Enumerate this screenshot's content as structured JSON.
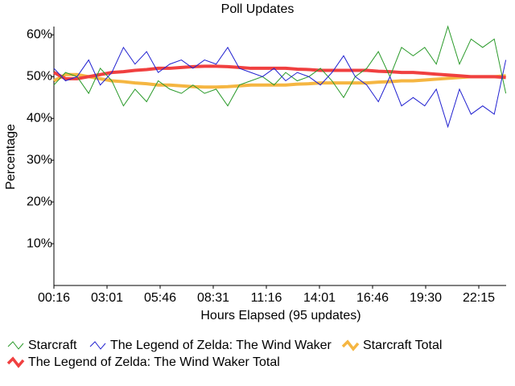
{
  "chart_data": {
    "type": "line",
    "title": "Poll Updates",
    "xlabel": "Hours Elapsed (95 updates)",
    "ylabel": "Percentage",
    "x": [
      16,
      52,
      88,
      124,
      160,
      196,
      232,
      268,
      304,
      340,
      376,
      412,
      448,
      484,
      520,
      556,
      592,
      628,
      664,
      700,
      736,
      772,
      808,
      844,
      880,
      916,
      952,
      988,
      1024,
      1060,
      1096,
      1132,
      1168,
      1204,
      1240,
      1276,
      1312,
      1348,
      1384,
      1420
    ],
    "xlim": [
      16,
      1421
    ],
    "xticks": [
      {
        "value": 16,
        "label": "00:16"
      },
      {
        "value": 181,
        "label": "03:01"
      },
      {
        "value": 346,
        "label": "05:46"
      },
      {
        "value": 511,
        "label": "08:31"
      },
      {
        "value": 676,
        "label": "11:16"
      },
      {
        "value": 841,
        "label": "14:01"
      },
      {
        "value": 1006,
        "label": "16:46"
      },
      {
        "value": 1171,
        "label": "19:30"
      },
      {
        "value": 1336,
        "label": "22:15"
      }
    ],
    "ylim": [
      0,
      62
    ],
    "yticks": [
      {
        "value": 10,
        "label": "10%"
      },
      {
        "value": 20,
        "label": "20%"
      },
      {
        "value": 30,
        "label": "30%"
      },
      {
        "value": 40,
        "label": "40%"
      },
      {
        "value": 50,
        "label": "50%"
      },
      {
        "value": 60,
        "label": "60%"
      }
    ],
    "grid": false,
    "legend": "bottom",
    "series": [
      {
        "name": "Starcraft",
        "color": "#2a9a2a",
        "width": 1,
        "values": [
          48,
          51,
          50,
          46,
          52,
          49,
          43,
          47,
          44,
          49,
          47,
          46,
          48,
          46,
          47,
          43,
          48,
          49,
          50,
          48,
          51,
          49,
          50,
          52,
          49,
          45,
          50,
          52,
          56,
          50,
          57,
          55,
          57,
          53,
          62,
          53,
          59,
          57,
          59,
          46
        ]
      },
      {
        "name": "The Legend of Zelda: The Wind Waker",
        "color": "#2020d0",
        "width": 1,
        "values": [
          52,
          49,
          50,
          54,
          48,
          51,
          57,
          53,
          56,
          51,
          53,
          54,
          52,
          54,
          53,
          57,
          52,
          51,
          50,
          52,
          49,
          51,
          50,
          48,
          51,
          55,
          50,
          48,
          44,
          50,
          43,
          45,
          43,
          47,
          38,
          47,
          41,
          43,
          41,
          54
        ]
      },
      {
        "name": "Starcraft Total",
        "color": "#f5b642",
        "width": 4,
        "values": [
          49,
          50.5,
          50.5,
          50,
          49.5,
          49,
          48.8,
          48.5,
          48.3,
          48,
          48,
          47.8,
          47.6,
          47.5,
          47.5,
          47.6,
          47.8,
          48,
          48,
          48,
          48,
          48.2,
          48.3,
          48.5,
          48.5,
          48.5,
          48.5,
          48.5,
          48.7,
          48.8,
          49,
          49,
          49.2,
          49.4,
          49.6,
          49.8,
          50,
          50,
          50,
          50.2
        ]
      },
      {
        "name": "The Legend of Zelda: The Wind Waker Total",
        "color": "#f04040",
        "width": 4,
        "values": [
          51,
          49.5,
          49.5,
          50,
          50.5,
          51,
          51.2,
          51.5,
          51.7,
          52,
          52,
          52.2,
          52.4,
          52.5,
          52.5,
          52.4,
          52.2,
          52,
          52,
          52,
          52,
          51.8,
          51.7,
          51.5,
          51.5,
          51.5,
          51.5,
          51.5,
          51.3,
          51.2,
          51,
          51,
          50.8,
          50.6,
          50.4,
          50.2,
          50,
          50,
          50,
          49.8
        ]
      }
    ]
  }
}
